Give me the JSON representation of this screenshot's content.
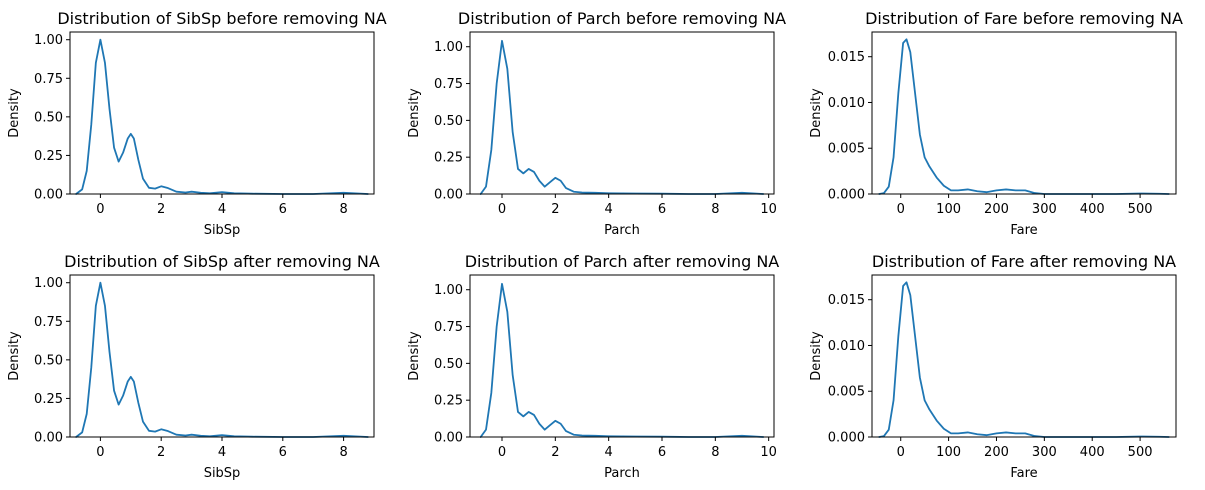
{
  "figure": {
    "background": "#ffffff",
    "line_color": "#1f77b4"
  },
  "chart_data": [
    {
      "type": "line",
      "title": "Distribution of SibSp before removing NA",
      "xlabel": "SibSp",
      "ylabel": "Density",
      "xlim": [
        -1.0,
        9.0
      ],
      "ylim": [
        0.0,
        1.05
      ],
      "xticks": [
        0,
        2,
        4,
        6,
        8
      ],
      "xticklabels": [
        "0",
        "2",
        "4",
        "6",
        "8"
      ],
      "yticks": [
        0.0,
        0.25,
        0.5,
        0.75,
        1.0
      ],
      "yticklabels": [
        "0.00",
        "0.25",
        "0.50",
        "0.75",
        "1.00"
      ],
      "series": [
        {
          "x": [
            -0.8,
            -0.6,
            -0.45,
            -0.3,
            -0.15,
            0,
            0.15,
            0.3,
            0.45,
            0.6,
            0.75,
            0.9,
            1.0,
            1.1,
            1.25,
            1.4,
            1.6,
            1.8,
            2.0,
            2.2,
            2.5,
            2.8,
            3.0,
            3.3,
            3.6,
            4.0,
            4.4,
            5.0,
            6.0,
            7.0,
            7.6,
            8.0,
            8.4,
            8.8
          ],
          "y": [
            0.0,
            0.03,
            0.15,
            0.45,
            0.85,
            1.0,
            0.85,
            0.55,
            0.3,
            0.21,
            0.27,
            0.36,
            0.39,
            0.36,
            0.22,
            0.1,
            0.04,
            0.035,
            0.05,
            0.04,
            0.015,
            0.01,
            0.015,
            0.008,
            0.005,
            0.012,
            0.005,
            0.002,
            0.0,
            0.0,
            0.005,
            0.008,
            0.004,
            0.0
          ]
        }
      ]
    },
    {
      "type": "line",
      "title": "Distribution of Parch before removing NA",
      "xlabel": "Parch",
      "ylabel": "Density",
      "xlim": [
        -1.2,
        10.2
      ],
      "ylim": [
        0.0,
        1.1
      ],
      "xticks": [
        0,
        2,
        4,
        6,
        8,
        10
      ],
      "xticklabels": [
        "0",
        "2",
        "4",
        "6",
        "8",
        "10"
      ],
      "yticks": [
        0.0,
        0.25,
        0.5,
        0.75,
        1.0
      ],
      "yticklabels": [
        "0.00",
        "0.25",
        "0.50",
        "0.75",
        "1.00"
      ],
      "series": [
        {
          "x": [
            -0.8,
            -0.6,
            -0.4,
            -0.2,
            0,
            0.2,
            0.4,
            0.6,
            0.8,
            1.0,
            1.2,
            1.4,
            1.6,
            1.8,
            2.0,
            2.2,
            2.4,
            2.7,
            3.0,
            3.5,
            4.0,
            5.0,
            6.0,
            7.0,
            8.0,
            8.6,
            9.0,
            9.4,
            9.8
          ],
          "y": [
            0.0,
            0.05,
            0.3,
            0.75,
            1.04,
            0.85,
            0.42,
            0.17,
            0.14,
            0.17,
            0.15,
            0.09,
            0.05,
            0.08,
            0.11,
            0.09,
            0.04,
            0.015,
            0.01,
            0.008,
            0.005,
            0.003,
            0.002,
            0.0,
            0.0,
            0.005,
            0.008,
            0.004,
            0.0
          ]
        }
      ]
    },
    {
      "type": "line",
      "title": "Distribution of Fare before removing NA",
      "xlabel": "Fare",
      "ylabel": "Density",
      "xlim": [
        -60,
        575
      ],
      "ylim": [
        0.0,
        0.0177
      ],
      "xticks": [
        0,
        100,
        200,
        300,
        400,
        500
      ],
      "xticklabels": [
        "0",
        "100",
        "200",
        "300",
        "400",
        "500"
      ],
      "yticks": [
        0.0,
        0.005,
        0.01,
        0.015
      ],
      "yticklabels": [
        "0.000",
        "0.005",
        "0.010",
        "0.015"
      ],
      "series": [
        {
          "x": [
            -45,
            -35,
            -25,
            -15,
            -5,
            5,
            12,
            20,
            30,
            40,
            50,
            60,
            75,
            90,
            105,
            120,
            140,
            160,
            180,
            200,
            220,
            240,
            260,
            280,
            300,
            350,
            400,
            450,
            500,
            540,
            560
          ],
          "y": [
            0.0,
            0.0001,
            0.0008,
            0.004,
            0.011,
            0.0165,
            0.0169,
            0.0155,
            0.011,
            0.0065,
            0.004,
            0.003,
            0.0018,
            0.0009,
            0.0004,
            0.0004,
            0.0005,
            0.0003,
            0.0002,
            0.0004,
            0.0005,
            0.0004,
            0.0004,
            0.0001,
            0.0,
            0.0,
            0.0,
            0.0,
            5e-05,
            3e-05,
            0.0
          ]
        }
      ]
    },
    {
      "type": "line",
      "title": "Distribution of SibSp after removing NA",
      "xlabel": "SibSp",
      "ylabel": "Density",
      "xlim": [
        -1.0,
        9.0
      ],
      "ylim": [
        0.0,
        1.05
      ],
      "xticks": [
        0,
        2,
        4,
        6,
        8
      ],
      "xticklabels": [
        "0",
        "2",
        "4",
        "6",
        "8"
      ],
      "yticks": [
        0.0,
        0.25,
        0.5,
        0.75,
        1.0
      ],
      "yticklabels": [
        "0.00",
        "0.25",
        "0.50",
        "0.75",
        "1.00"
      ],
      "series": [
        {
          "x": [
            -0.8,
            -0.6,
            -0.45,
            -0.3,
            -0.15,
            0,
            0.15,
            0.3,
            0.45,
            0.6,
            0.75,
            0.9,
            1.0,
            1.1,
            1.25,
            1.4,
            1.6,
            1.8,
            2.0,
            2.2,
            2.5,
            2.8,
            3.0,
            3.3,
            3.6,
            4.0,
            4.4,
            5.0,
            6.0,
            7.0,
            7.6,
            8.0,
            8.4,
            8.8
          ],
          "y": [
            0.0,
            0.03,
            0.15,
            0.45,
            0.85,
            1.0,
            0.85,
            0.55,
            0.3,
            0.21,
            0.27,
            0.36,
            0.39,
            0.36,
            0.22,
            0.1,
            0.04,
            0.035,
            0.05,
            0.04,
            0.015,
            0.01,
            0.015,
            0.008,
            0.005,
            0.012,
            0.005,
            0.002,
            0.0,
            0.0,
            0.005,
            0.008,
            0.004,
            0.0
          ]
        }
      ]
    },
    {
      "type": "line",
      "title": "Distribution of Parch after removing NA",
      "xlabel": "Parch",
      "ylabel": "Density",
      "xlim": [
        -1.2,
        10.2
      ],
      "ylim": [
        0.0,
        1.1
      ],
      "xticks": [
        0,
        2,
        4,
        6,
        8,
        10
      ],
      "xticklabels": [
        "0",
        "2",
        "4",
        "6",
        "8",
        "10"
      ],
      "yticks": [
        0.0,
        0.25,
        0.5,
        0.75,
        1.0
      ],
      "yticklabels": [
        "0.00",
        "0.25",
        "0.50",
        "0.75",
        "1.00"
      ],
      "series": [
        {
          "x": [
            -0.8,
            -0.6,
            -0.4,
            -0.2,
            0,
            0.2,
            0.4,
            0.6,
            0.8,
            1.0,
            1.2,
            1.4,
            1.6,
            1.8,
            2.0,
            2.2,
            2.4,
            2.7,
            3.0,
            3.5,
            4.0,
            5.0,
            6.0,
            7.0,
            8.0,
            8.6,
            9.0,
            9.4,
            9.8
          ],
          "y": [
            0.0,
            0.05,
            0.3,
            0.75,
            1.04,
            0.85,
            0.42,
            0.17,
            0.14,
            0.17,
            0.15,
            0.09,
            0.05,
            0.08,
            0.11,
            0.09,
            0.04,
            0.015,
            0.01,
            0.008,
            0.005,
            0.003,
            0.002,
            0.0,
            0.0,
            0.005,
            0.008,
            0.004,
            0.0
          ]
        }
      ]
    },
    {
      "type": "line",
      "title": "Distribution of Fare after removing NA",
      "xlabel": "Fare",
      "ylabel": "Density",
      "xlim": [
        -60,
        575
      ],
      "ylim": [
        0.0,
        0.0177
      ],
      "xticks": [
        0,
        100,
        200,
        300,
        400,
        500
      ],
      "xticklabels": [
        "0",
        "100",
        "200",
        "300",
        "400",
        "500"
      ],
      "yticks": [
        0.0,
        0.005,
        0.01,
        0.015
      ],
      "yticklabels": [
        "0.000",
        "0.005",
        "0.010",
        "0.015"
      ],
      "series": [
        {
          "x": [
            -45,
            -35,
            -25,
            -15,
            -5,
            5,
            12,
            20,
            30,
            40,
            50,
            60,
            75,
            90,
            105,
            120,
            140,
            160,
            180,
            200,
            220,
            240,
            260,
            280,
            300,
            350,
            400,
            450,
            500,
            540,
            560
          ],
          "y": [
            0.0,
            0.0001,
            0.0008,
            0.004,
            0.011,
            0.0165,
            0.0169,
            0.0155,
            0.011,
            0.0065,
            0.004,
            0.003,
            0.0018,
            0.0009,
            0.0004,
            0.0004,
            0.0005,
            0.0003,
            0.0002,
            0.0004,
            0.0005,
            0.0004,
            0.0004,
            0.0001,
            0.0,
            0.0,
            0.0,
            0.0,
            5e-05,
            3e-05,
            0.0
          ]
        }
      ]
    }
  ]
}
